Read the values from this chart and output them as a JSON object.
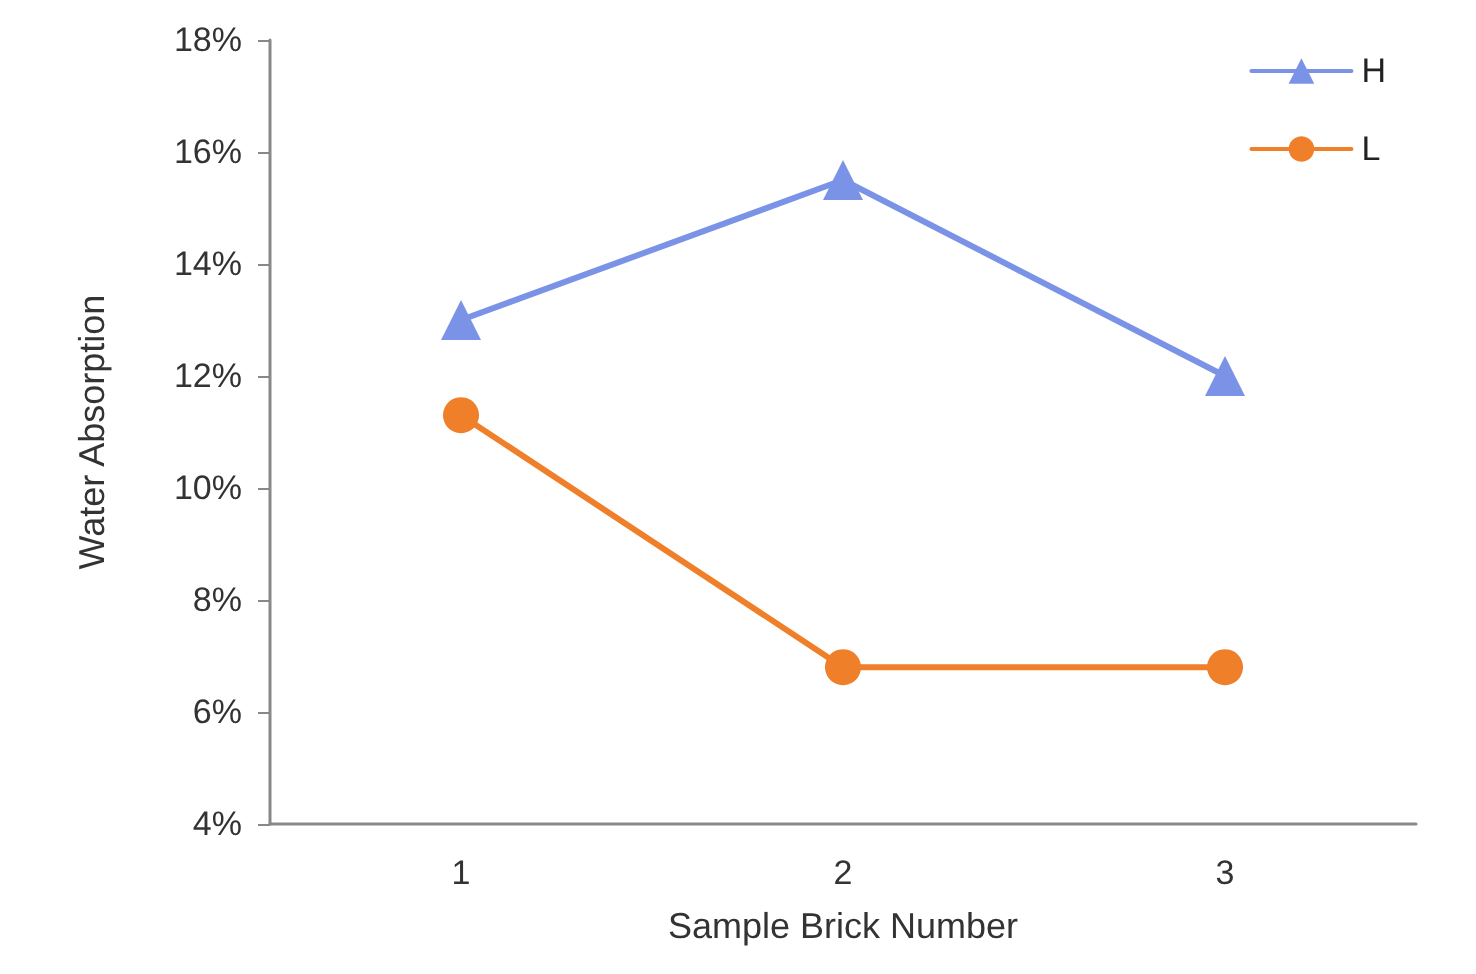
{
  "chart_data": {
    "type": "line",
    "xlabel": "Sample Brick Number",
    "ylabel": "Water Absorption",
    "categories": [
      "1",
      "2",
      "3"
    ],
    "series": [
      {
        "name": "H",
        "color": "#7b93e6",
        "marker": "triangle",
        "values": [
          13.0,
          15.5,
          12.0
        ]
      },
      {
        "name": "L",
        "color": "#f07f2a",
        "marker": "circle",
        "values": [
          11.3,
          6.8,
          6.8
        ]
      }
    ],
    "ylim": [
      4,
      18
    ],
    "yticks": [
      {
        "value": 4,
        "label": "4%"
      },
      {
        "value": 6,
        "label": "6%"
      },
      {
        "value": 8,
        "label": "8%"
      },
      {
        "value": 10,
        "label": "10%"
      },
      {
        "value": 12,
        "label": "12%"
      },
      {
        "value": 14,
        "label": "14%"
      },
      {
        "value": 16,
        "label": "16%"
      },
      {
        "value": 18,
        "label": "18%"
      }
    ],
    "grid": false,
    "legend": "top right",
    "line_style": "solid"
  }
}
